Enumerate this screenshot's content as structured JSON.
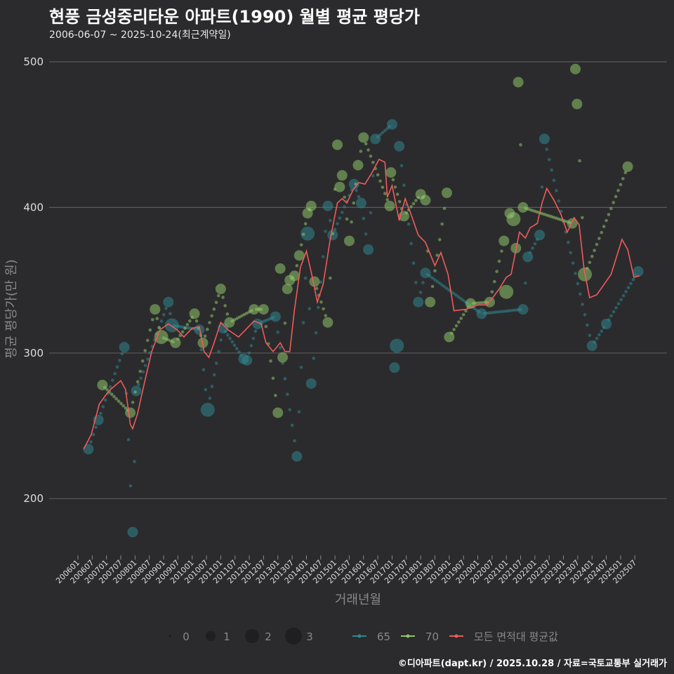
{
  "title": "현풍 금성중리타운 아파트(1990) 월별 평균 평당가",
  "subtitle": "2006-06-07 ~ 2025-10-24(최근계약일)",
  "footer": "©디아파트(dapt.kr) / 2025.10.28 / 자료=국토교통부 실거래가",
  "colors": {
    "background": "#2b2b2d",
    "s65": "#2f8790",
    "s70": "#8fc46a",
    "avg": "#f05a5a",
    "grid": "#5a5a5a"
  },
  "chart_data": {
    "type": "scatter",
    "title": "현풍 금성중리타운 아파트(1990) 월별 평균 평당가",
    "xlabel": "거래년월",
    "ylabel": "평균 평당가(만 원)",
    "ylim": [
      162,
      513
    ],
    "yticks": [
      200,
      300,
      400,
      500
    ],
    "x_start": "200601",
    "xticks": [
      "200601",
      "200607",
      "200701",
      "200707",
      "200801",
      "200807",
      "200901",
      "200907",
      "201001",
      "201007",
      "201101",
      "201107",
      "201201",
      "201207",
      "201301",
      "201307",
      "201401",
      "201407",
      "201501",
      "201507",
      "201601",
      "201607",
      "201701",
      "201707",
      "201801",
      "201807",
      "201901",
      "201907",
      "202001",
      "202007",
      "202101",
      "202107",
      "202201",
      "202207",
      "202301",
      "202307",
      "202401",
      "202407",
      "202501",
      "202507"
    ],
    "x_unit": "months since 200601",
    "legend_size": {
      "title": "",
      "values": [
        "0",
        "1",
        "2",
        "3"
      ]
    },
    "legend": [
      "65",
      "70",
      "모든 면적대 평균값"
    ],
    "series": [
      {
        "name": "65",
        "points": [
          [
            4.4,
            234,
            1
          ],
          [
            8.6,
            254,
            1
          ],
          [
            19.5,
            304,
            1
          ],
          [
            23,
            177,
            1
          ],
          [
            24.5,
            274,
            1
          ],
          [
            38,
            335,
            1
          ],
          [
            39.5,
            319,
            2
          ],
          [
            51,
            316,
            1
          ],
          [
            54.5,
            261,
            2
          ],
          [
            61,
            317,
            1
          ],
          [
            69.6,
            296,
            1
          ],
          [
            71,
            295,
            1
          ],
          [
            75.5,
            320,
            1
          ],
          [
            83,
            325,
            1
          ],
          [
            92,
            229,
            1
          ],
          [
            96.5,
            382,
            2
          ],
          [
            98,
            279,
            1
          ],
          [
            105,
            401,
            1
          ],
          [
            107,
            381,
            1
          ],
          [
            116,
            416,
            1
          ],
          [
            119,
            403,
            1
          ],
          [
            122,
            371,
            1
          ],
          [
            125,
            447,
            1
          ],
          [
            132,
            457,
            1
          ],
          [
            133,
            290,
            1
          ],
          [
            134,
            305,
            2
          ],
          [
            135,
            442,
            1
          ],
          [
            143,
            335,
            1
          ],
          [
            146,
            355,
            1
          ],
          [
            169.6,
            327,
            1
          ],
          [
            187,
            330,
            1
          ],
          [
            189,
            366,
            1
          ],
          [
            194,
            381,
            1
          ],
          [
            196,
            447,
            1
          ],
          [
            216,
            305,
            1
          ],
          [
            222,
            320,
            1
          ],
          [
            235.4,
            356,
            1
          ]
        ]
      },
      {
        "name": "70",
        "points": [
          [
            10.3,
            278,
            1
          ],
          [
            22,
            259,
            1
          ],
          [
            32.4,
            330,
            1
          ],
          [
            35,
            311,
            2
          ],
          [
            41,
            307,
            1
          ],
          [
            49,
            327,
            1
          ],
          [
            52.5,
            307,
            1
          ],
          [
            60,
            344,
            1
          ],
          [
            63.7,
            321,
            1
          ],
          [
            74,
            330,
            1
          ],
          [
            78,
            330,
            1
          ],
          [
            84,
            259,
            1
          ],
          [
            85,
            358,
            1
          ],
          [
            86,
            297,
            1
          ],
          [
            88,
            344,
            1
          ],
          [
            89,
            350,
            1
          ],
          [
            91,
            353,
            1
          ],
          [
            93,
            367,
            1
          ],
          [
            96.5,
            396,
            1
          ],
          [
            98,
            401,
            1
          ],
          [
            99.4,
            349,
            1
          ],
          [
            105,
            321,
            1
          ],
          [
            109,
            443,
            1
          ],
          [
            110,
            414,
            1
          ],
          [
            111,
            422,
            1
          ],
          [
            114,
            377,
            1
          ],
          [
            117.7,
            429,
            1
          ],
          [
            120,
            448,
            1
          ],
          [
            131,
            401,
            1
          ],
          [
            131.5,
            424,
            1
          ],
          [
            137,
            394,
            1
          ],
          [
            144,
            409,
            1
          ],
          [
            146,
            405,
            1
          ],
          [
            148,
            335,
            1
          ],
          [
            155,
            410,
            1
          ],
          [
            156,
            311,
            1
          ],
          [
            165,
            334,
            1
          ],
          [
            173,
            335,
            1
          ],
          [
            179,
            377,
            1
          ],
          [
            180,
            342,
            2
          ],
          [
            181.4,
            396,
            1
          ],
          [
            183,
            392,
            2
          ],
          [
            184,
            372,
            1
          ],
          [
            185,
            486,
            1
          ],
          [
            187,
            400,
            1
          ],
          [
            207.7,
            389,
            1
          ],
          [
            209,
            495,
            1
          ],
          [
            209.7,
            471,
            1
          ],
          [
            213,
            354,
            2
          ],
          [
            231,
            428,
            1
          ]
        ]
      },
      {
        "name": "모든 면적대 평균값",
        "points": [
          [
            2.4,
            234
          ],
          [
            5.6,
            244
          ],
          [
            9,
            265
          ],
          [
            13,
            274
          ],
          [
            18,
            281
          ],
          [
            20,
            275
          ],
          [
            22,
            251
          ],
          [
            23,
            248
          ],
          [
            25,
            258
          ],
          [
            28,
            280
          ],
          [
            31,
            301
          ],
          [
            34.5,
            316
          ],
          [
            38,
            320
          ],
          [
            41.6,
            316
          ],
          [
            44.5,
            311
          ],
          [
            48,
            317
          ],
          [
            51,
            318
          ],
          [
            53,
            301
          ],
          [
            55,
            297
          ],
          [
            57,
            306
          ],
          [
            60,
            321
          ],
          [
            63,
            316
          ],
          [
            67.5,
            311
          ],
          [
            70.5,
            316
          ],
          [
            74,
            322
          ],
          [
            77,
            320
          ],
          [
            79,
            307
          ],
          [
            82,
            301
          ],
          [
            85,
            307
          ],
          [
            87,
            301
          ],
          [
            89,
            301
          ],
          [
            91,
            330
          ],
          [
            93.5,
            359
          ],
          [
            96,
            370
          ],
          [
            98.5,
            352
          ],
          [
            100.6,
            335
          ],
          [
            103,
            347
          ],
          [
            106,
            378
          ],
          [
            109,
            403
          ],
          [
            111,
            406
          ],
          [
            113,
            403
          ],
          [
            115.6,
            412
          ],
          [
            118,
            417
          ],
          [
            120.6,
            416
          ],
          [
            123.6,
            424
          ],
          [
            126.5,
            433
          ],
          [
            129,
            431
          ],
          [
            130,
            407
          ],
          [
            132,
            415
          ],
          [
            135,
            391
          ],
          [
            137.5,
            406
          ],
          [
            140,
            395
          ],
          [
            143,
            381
          ],
          [
            146,
            376
          ],
          [
            150,
            360
          ],
          [
            152.5,
            369
          ],
          [
            155.5,
            354
          ],
          [
            158,
            329
          ],
          [
            163,
            330
          ],
          [
            168,
            333
          ],
          [
            172,
            333
          ],
          [
            177,
            344
          ],
          [
            180,
            352
          ],
          [
            182,
            354
          ],
          [
            185.5,
            383
          ],
          [
            188,
            379
          ],
          [
            190,
            386
          ],
          [
            193,
            389
          ],
          [
            195,
            403
          ],
          [
            197,
            413
          ],
          [
            200,
            405
          ],
          [
            203,
            395
          ],
          [
            205.6,
            383
          ],
          [
            208.5,
            393
          ],
          [
            210.6,
            388
          ],
          [
            212.7,
            357
          ],
          [
            215,
            338
          ],
          [
            218,
            340
          ],
          [
            224,
            354
          ],
          [
            228.6,
            378
          ],
          [
            231,
            371
          ],
          [
            233.6,
            352
          ],
          [
            236,
            353
          ]
        ]
      }
    ]
  }
}
